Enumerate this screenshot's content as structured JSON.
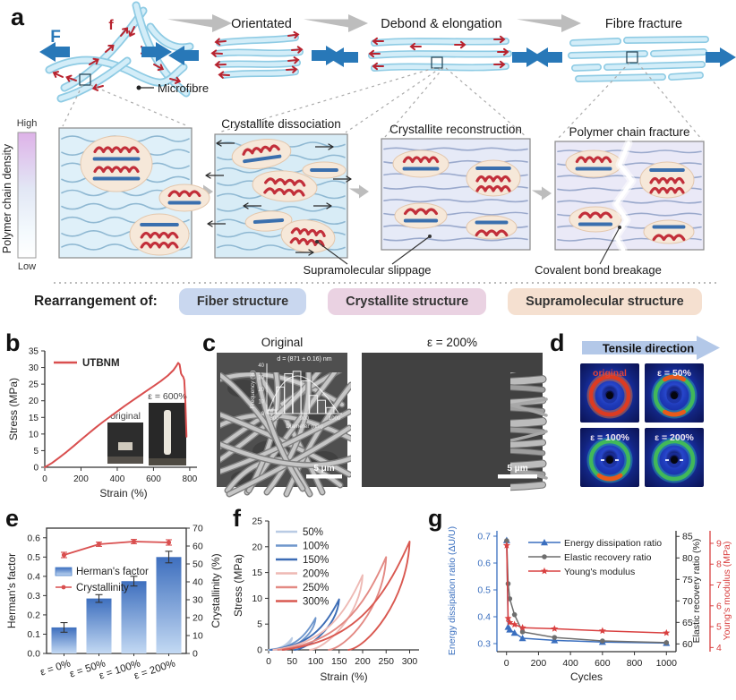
{
  "figure": {
    "panel_labels": {
      "a": "a",
      "b": "b",
      "c": "c",
      "d": "d",
      "e": "e",
      "f": "f",
      "g": "g"
    },
    "panel_a": {
      "force_label": "F",
      "fiber_force_label": "f",
      "microfibre_label": "Microfibre",
      "stage_labels": [
        "Orientated",
        "Debond & elongation",
        "Fibre fracture"
      ],
      "colorbar": {
        "label": "Polymer chain density",
        "high": "High",
        "low": "Low"
      },
      "box_titles": [
        "Crystallite dissociation",
        "Crystallite reconstruction",
        "Polymer chain fracture"
      ],
      "annotations": {
        "slippage": "Supramolecular slippage",
        "breakage": "Covalent bond breakage"
      },
      "rearrangement": {
        "label": "Rearrangement of:",
        "pills": [
          {
            "text": "Fiber structure",
            "bg": "#c9d7ef"
          },
          {
            "text": "Crystallite structure",
            "bg": "#ead2e2"
          },
          {
            "text": "Supramolecular structure",
            "bg": "#f5e0d0"
          }
        ]
      }
    },
    "panel_c": {
      "titles": [
        "Original",
        "ε = 200%"
      ],
      "scalebar": "5 μm"
    },
    "panel_d": {
      "title": "Tensile direction",
      "tile_labels": [
        "original",
        "ε = 50%",
        "ε = 100%",
        "ε = 200%"
      ]
    }
  },
  "chart_data": [
    {
      "id": "b",
      "type": "line",
      "xlabel": "Strain (%)",
      "ylabel": "Stress (MPa)",
      "xlim": [
        0,
        840
      ],
      "ylim": [
        0,
        35
      ],
      "xticks": [
        0,
        200,
        400,
        600,
        800
      ],
      "yticks": [
        0,
        5,
        10,
        15,
        20,
        25,
        30,
        35
      ],
      "legend": [
        "UTBNM"
      ],
      "line_color": "#d94f4f",
      "insets": [
        "original",
        "ε = 600%"
      ],
      "series": [
        {
          "name": "UTBNM",
          "x": [
            0,
            40,
            80,
            120,
            160,
            200,
            240,
            280,
            320,
            360,
            400,
            440,
            480,
            520,
            560,
            600,
            640,
            680,
            710,
            728,
            736,
            744,
            752,
            758,
            764,
            770,
            776,
            782
          ],
          "y": [
            0,
            1.3,
            2.9,
            4.6,
            6.4,
            8.3,
            10.1,
            11.9,
            13.6,
            15.2,
            16.8,
            18.4,
            19.9,
            21.4,
            22.9,
            24.4,
            25.9,
            27.6,
            29.2,
            30.6,
            31.4,
            30.9,
            28.2,
            27.6,
            27.2,
            26.2,
            20.0,
            9.2
          ]
        }
      ]
    },
    {
      "id": "c_inset",
      "type": "bar",
      "annotation": "d = (871 ± 0.16) nm",
      "xlabel": "Diameter (nm)",
      "ylabel": "Frequency (%)",
      "xticks": [
        800,
        900,
        1000
      ],
      "yticks": [
        0,
        10,
        20,
        30,
        40
      ],
      "xlim": [
        775,
        1025
      ],
      "ylim": [
        0,
        40
      ],
      "bin_centers": [
        792,
        820,
        847,
        875,
        902,
        930,
        957,
        985
      ],
      "values": [
        3,
        22,
        33,
        35,
        27,
        15,
        11,
        5
      ]
    },
    {
      "id": "e",
      "type": "bar+line",
      "categories": [
        "ε = 0%",
        "ε = 50%",
        "ε = 100%",
        "ε = 200%"
      ],
      "ylabel_left": "Herman's factor",
      "ylabel_right": "Crystallinity (%)",
      "ylim_left": [
        0,
        0.65
      ],
      "ylim_right": [
        0,
        70
      ],
      "yticks_left": [
        0,
        0.1,
        0.2,
        0.3,
        0.4,
        0.5,
        0.6
      ],
      "yticks_right": [
        0,
        10,
        20,
        30,
        40,
        50,
        60,
        70
      ],
      "bar_series": {
        "name": "Herman's factor",
        "color": "#4a7ec7",
        "values": [
          0.135,
          0.285,
          0.375,
          0.5
        ],
        "errors": [
          0.025,
          0.02,
          0.025,
          0.03
        ]
      },
      "line_series": {
        "name": "Crystallinity",
        "color": "#d94f4f",
        "values": [
          55,
          61,
          62.5,
          62
        ],
        "errors": [
          1.5,
          1.2,
          1.2,
          1.5
        ]
      }
    },
    {
      "id": "f",
      "type": "line-loops",
      "xlabel": "Strain (%)",
      "ylabel": "Stress (MPa)",
      "xlim": [
        0,
        320
      ],
      "ylim": [
        0,
        25
      ],
      "xticks": [
        0,
        50,
        100,
        150,
        200,
        250,
        300
      ],
      "yticks": [
        0,
        5,
        10,
        15,
        20,
        25
      ],
      "series": [
        {
          "name": "50%",
          "color": "#b9cbe4",
          "start": 0,
          "peak_strain": 50,
          "peak_stress": 2.3,
          "residual": 14
        },
        {
          "name": "100%",
          "color": "#6e96cc",
          "start": 2,
          "peak_strain": 100,
          "peak_stress": 6.2,
          "residual": 30
        },
        {
          "name": "150%",
          "color": "#3c6cb5",
          "start": 5,
          "peak_strain": 150,
          "peak_stress": 9.8,
          "residual": 55
        },
        {
          "name": "200%",
          "color": "#eeb9b4",
          "start": 10,
          "peak_strain": 200,
          "peak_stress": 14.5,
          "residual": 88
        },
        {
          "name": "250%",
          "color": "#e38a84",
          "start": 20,
          "peak_strain": 250,
          "peak_stress": 18,
          "residual": 128
        },
        {
          "name": "300%",
          "color": "#d95850",
          "start": 30,
          "peak_strain": 300,
          "peak_stress": 21,
          "residual": 170
        }
      ]
    },
    {
      "id": "g",
      "type": "line",
      "xlabel": "Cycles",
      "x": [
        1,
        10,
        20,
        50,
        100,
        300,
        600,
        1000
      ],
      "xticks": [
        0,
        200,
        400,
        600,
        800,
        1000
      ],
      "xlim": [
        -60,
        1060
      ],
      "left_axis": {
        "label": "Energy dissipation ratio (ΔU/U)",
        "ticks": [
          0.3,
          0.4,
          0.5,
          0.6,
          0.7
        ],
        "lim": [
          0.27,
          0.72
        ],
        "color": "#3a6fbf"
      },
      "mid_axis": {
        "label": "Elastic recovery ratio (%)",
        "ticks": [
          60,
          65,
          70,
          75,
          80,
          85
        ],
        "lim": [
          58.2,
          86.3
        ],
        "color": "#333333"
      },
      "right_axis": {
        "label": "Young's modulus (MPa)",
        "ticks": [
          4,
          5,
          6,
          7,
          8,
          9
        ],
        "lim": [
          3.8,
          9.6
        ],
        "color": "#d94040"
      },
      "series": [
        {
          "name": "Energy dissipation ratio",
          "axis": "left",
          "marker": "triangle",
          "color": "#3a6fbf",
          "values": [
            0.685,
            0.362,
            0.352,
            0.34,
            0.32,
            0.312,
            0.306,
            0.302
          ]
        },
        {
          "name": "Elastic recovery ratio",
          "axis": "mid",
          "marker": "circle",
          "color": "#6e6e6e",
          "values": [
            84,
            74,
            70.5,
            66.8,
            62.8,
            61.5,
            60.7,
            60.3
          ]
        },
        {
          "name": "Young's modulus",
          "axis": "right",
          "marker": "star",
          "color": "#d94040",
          "values": [
            8.9,
            5.4,
            5.2,
            5.1,
            4.95,
            4.9,
            4.8,
            4.7
          ]
        }
      ]
    }
  ]
}
